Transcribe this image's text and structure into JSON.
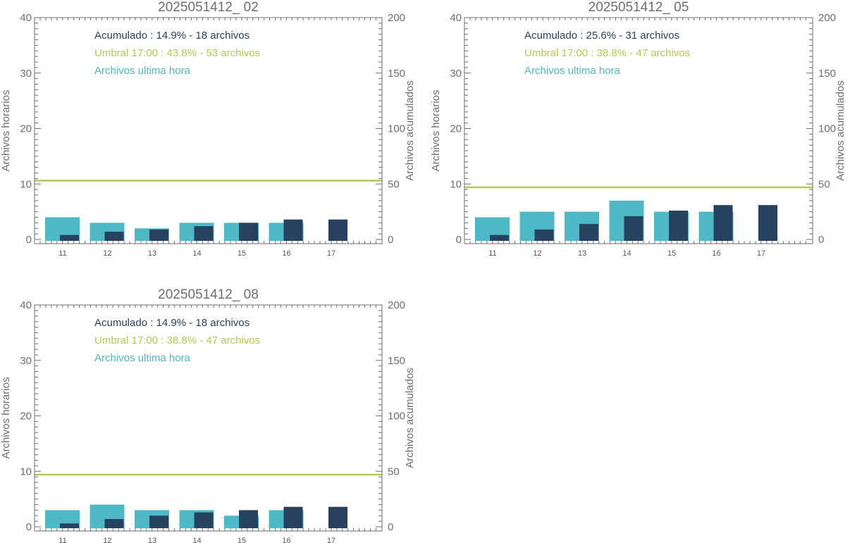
{
  "colors": {
    "hourly": "#4db8c6",
    "cumulative": "#27425f",
    "threshold": "#b5c94e",
    "frame": "#6e6e6e"
  },
  "chart_data": [
    {
      "type": "bar",
      "title": "2025051412_ 02",
      "ylabel_left": "Archivos horarios",
      "ylabel_right": "Archivos acumulados",
      "ylim_left": [
        0,
        40
      ],
      "ylim_right": [
        0,
        200
      ],
      "yticks_left": [
        "0",
        "10",
        "20",
        "30",
        "40"
      ],
      "yticks_right": [
        "0",
        "50",
        "100",
        "150",
        "200"
      ],
      "categories": [
        "11",
        "12",
        "13",
        "14",
        "15",
        "16",
        "17"
      ],
      "legend": {
        "cumulative": "Acumulado : 14.9% - 18 archivos",
        "threshold": "Umbral 17:00 : 43.8% - 53 archivos",
        "hourly": "Archivos ultima hora"
      },
      "series": [
        {
          "name": "Archivos ultima hora",
          "axis": "left",
          "values": [
            4,
            3,
            2,
            3,
            3,
            3,
            0
          ]
        },
        {
          "name": "Acumulado",
          "axis": "right",
          "values": [
            4,
            7,
            9,
            12,
            15,
            18,
            18
          ]
        }
      ],
      "threshold": 53
    },
    {
      "type": "bar",
      "title": "2025051412_ 05",
      "ylabel_left": "Archivos horarios",
      "ylabel_right": "Archivos acumulados",
      "ylim_left": [
        0,
        40
      ],
      "ylim_right": [
        0,
        200
      ],
      "yticks_left": [
        "0",
        "10",
        "20",
        "30",
        "40"
      ],
      "yticks_right": [
        "0",
        "50",
        "100",
        "150",
        "200"
      ],
      "categories": [
        "11",
        "12",
        "13",
        "14",
        "15",
        "16",
        "17"
      ],
      "legend": {
        "cumulative": "Acumulado : 25.6% - 31 archivos",
        "threshold": "Umbral 17:00 : 38.8% - 47 archivos",
        "hourly": "Archivos ultima hora"
      },
      "series": [
        {
          "name": "Archivos ultima hora",
          "axis": "left",
          "values": [
            4,
            5,
            5,
            7,
            5,
            5,
            0
          ]
        },
        {
          "name": "Acumulado",
          "axis": "right",
          "values": [
            4,
            9,
            14,
            21,
            26,
            31,
            31
          ]
        }
      ],
      "threshold": 47
    },
    {
      "type": "bar",
      "title": "2025051412_ 08",
      "ylabel_left": "Archivos horarios",
      "ylabel_right": "Archivos acumulados",
      "ylim_left": [
        0,
        40
      ],
      "ylim_right": [
        0,
        200
      ],
      "yticks_left": [
        "0",
        "10",
        "20",
        "30",
        "40"
      ],
      "yticks_right": [
        "0",
        "50",
        "100",
        "150",
        "200"
      ],
      "categories": [
        "11",
        "12",
        "13",
        "14",
        "15",
        "16",
        "17"
      ],
      "legend": {
        "cumulative": "Acumulado : 14.9% - 18 archivos",
        "threshold": "Umbral 17:00 : 38.8% - 47 archivos",
        "hourly": "Archivos ultima hora"
      },
      "series": [
        {
          "name": "Archivos ultima hora",
          "axis": "left",
          "values": [
            3,
            4,
            3,
            3,
            2,
            3,
            0
          ]
        },
        {
          "name": "Acumulado",
          "axis": "right",
          "values": [
            3,
            7,
            10,
            13,
            15,
            18,
            18
          ]
        }
      ],
      "threshold": 47
    }
  ]
}
